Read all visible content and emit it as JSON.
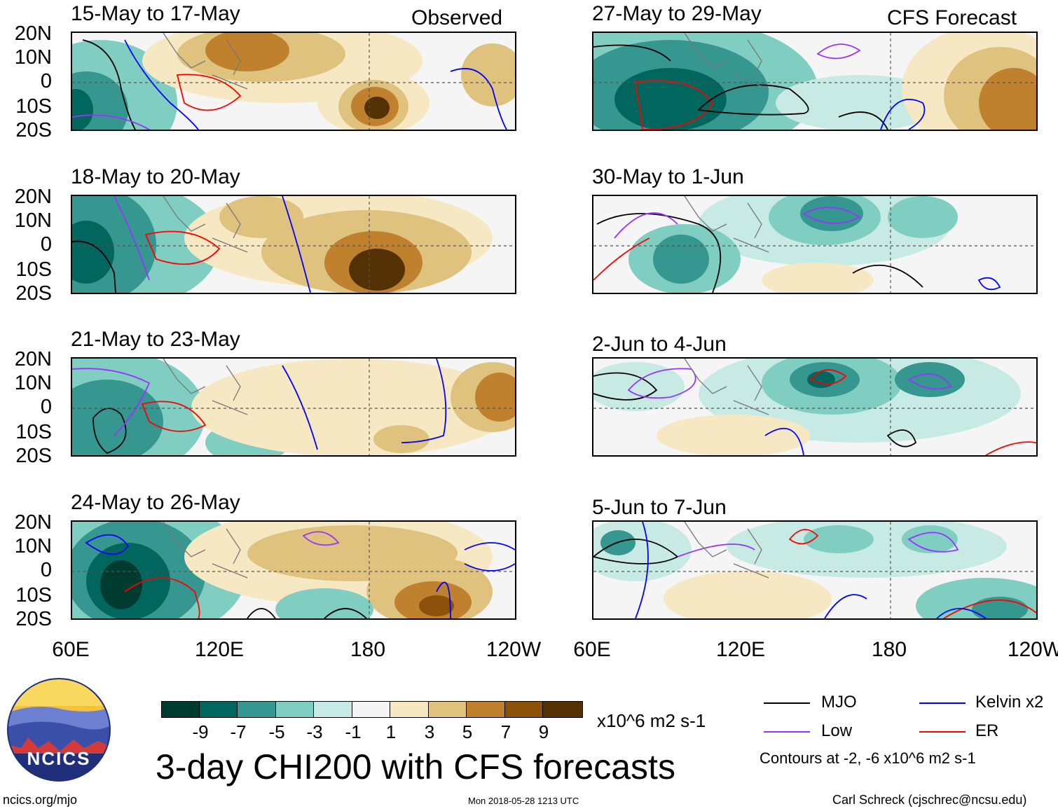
{
  "figure": {
    "title": "3-day CHI200 with CFS forecasts",
    "left_column_label": "Observed",
    "right_column_label": "CFS Forecast",
    "lat_labels": [
      "20N",
      "10N",
      "0",
      "10S",
      "20S"
    ],
    "lon_labels": [
      "60E",
      "120E",
      "180",
      "120W"
    ],
    "panels_left": [
      {
        "title": "15-May to 17-May"
      },
      {
        "title": "18-May to 20-May"
      },
      {
        "title": "21-May to 23-May"
      },
      {
        "title": "24-May to 26-May"
      }
    ],
    "panels_right": [
      {
        "title": "27-May to 29-May"
      },
      {
        "title": "30-May to 1-Jun"
      },
      {
        "title": "2-Jun to 4-Jun"
      },
      {
        "title": "5-Jun to 7-Jun"
      }
    ]
  },
  "colorbar": {
    "unit": "x10^6 m2 s-1",
    "labels": [
      "-9",
      "-7",
      "-5",
      "-3",
      "-1",
      "1",
      "3",
      "5",
      "7",
      "9"
    ],
    "colors": [
      "#003b30",
      "#01665e",
      "#35978f",
      "#80cdc1",
      "#c7eae5",
      "#f5f5f5",
      "#f6e8c3",
      "#dfc27d",
      "#bf812d",
      "#8c510a",
      "#543005"
    ]
  },
  "legend": {
    "items": [
      {
        "label": "MJO",
        "color": "#000000"
      },
      {
        "label": "Kelvin x2",
        "color": "#0000ff"
      },
      {
        "label": "Low",
        "color": "#9933ff"
      },
      {
        "label": "ER",
        "color": "#ff0000"
      }
    ],
    "note": "Contours at -2, -6 x10^6 m2 s-1"
  },
  "footer": {
    "logo_text": "NCICS",
    "url": "ncics.org/mjo",
    "timestamp": "Mon 2018-05-28 1213 UTC",
    "credit": "Carl Schreck (cjschrec@ncsu.edu)"
  }
}
